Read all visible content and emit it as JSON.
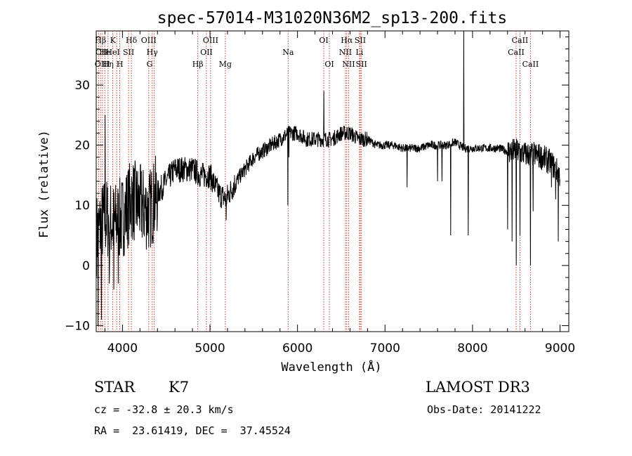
{
  "chart_data": {
    "type": "line",
    "title": "spec-57014-M31020N36M2_sp13-200.fits",
    "xlabel": "Wavelength (Å)",
    "ylabel": "Flux (relative)",
    "xlim": [
      3700,
      9100
    ],
    "ylim": [
      -11,
      39
    ],
    "xticks": [
      4000,
      5000,
      6000,
      7000,
      8000,
      9000
    ],
    "yticks": [
      -10,
      0,
      10,
      20,
      30
    ],
    "grid": false,
    "spectrum_anchors": {
      "x": [
        3700,
        3800,
        3900,
        4000,
        4100,
        4200,
        4300,
        4400,
        4500,
        4600,
        4700,
        4800,
        4900,
        5000,
        5100,
        5180,
        5300,
        5400,
        5500,
        5600,
        5700,
        5800,
        5900,
        6000,
        6100,
        6200,
        6300,
        6400,
        6500,
        6600,
        6700,
        6800,
        6900,
        7000,
        7100,
        7200,
        7300,
        7400,
        7500,
        7600,
        7700,
        7800,
        7900,
        8000,
        8100,
        8200,
        8300,
        8400,
        8500,
        8600,
        8700,
        8800,
        8900,
        9000
      ],
      "y": [
        5,
        8,
        7,
        8,
        11,
        10,
        9,
        12,
        14,
        16,
        16,
        16,
        15,
        15,
        12,
        11,
        14,
        16,
        18,
        19,
        20,
        21,
        22,
        22,
        21,
        21,
        21,
        21,
        22,
        22,
        21,
        21,
        20,
        20,
        20,
        19.5,
        19.5,
        19.5,
        20,
        20,
        20,
        20.5,
        19.5,
        19.5,
        19.5,
        19.5,
        19.5,
        19,
        19,
        18.5,
        18.5,
        18,
        17,
        15
      ]
    },
    "spikes": [
      {
        "x": 5185,
        "y": 7.5
      },
      {
        "x": 5890,
        "y": 10
      },
      {
        "x": 5900,
        "y": 18
      },
      {
        "x": 6300,
        "y": 29
      },
      {
        "x": 6563,
        "y": 23
      },
      {
        "x": 7250,
        "y": 13
      },
      {
        "x": 7600,
        "y": 14
      },
      {
        "x": 7650,
        "y": 14
      },
      {
        "x": 7750,
        "y": 5
      },
      {
        "x": 7900,
        "y": 39
      },
      {
        "x": 7950,
        "y": 5
      },
      {
        "x": 8400,
        "y": 6
      },
      {
        "x": 8450,
        "y": 4
      },
      {
        "x": 8500,
        "y": 0
      },
      {
        "x": 8540,
        "y": 5
      },
      {
        "x": 8660,
        "y": 0
      },
      {
        "x": 8690,
        "y": 9
      },
      {
        "x": 8900,
        "y": 13
      },
      {
        "x": 8950,
        "y": 11
      },
      {
        "x": 8980,
        "y": 4
      },
      {
        "x": 9000,
        "y": 0
      },
      {
        "x": 3720,
        "y": -10
      },
      {
        "x": 3760,
        "y": -9
      },
      {
        "x": 3800,
        "y": 25
      },
      {
        "x": 3850,
        "y": -3
      },
      {
        "x": 3900,
        "y": -4
      },
      {
        "x": 3950,
        "y": -3
      }
    ],
    "lines": [
      {
        "label": "Hβ",
        "x": 3750,
        "row": 0
      },
      {
        "label": "CII",
        "x": 3760,
        "row": 1
      },
      {
        "label": "OIII",
        "x": 3770,
        "row": 2
      },
      {
        "label": "He",
        "x": 3800,
        "row": 1
      },
      {
        "label": "Hη",
        "x": 3835,
        "row": 2
      },
      {
        "label": "K",
        "x": 3890,
        "row": 0
      },
      {
        "label": "HeI",
        "x": 3890,
        "row": 1
      },
      {
        "label": "H",
        "x": 3970,
        "row": 2
      },
      {
        "label": "SII",
        "x": 4070,
        "row": 1
      },
      {
        "label": "Hδ",
        "x": 4102,
        "row": 0
      },
      {
        "label": "OIII",
        "x": 4300,
        "row": 0
      },
      {
        "label": "Hγ",
        "x": 4340,
        "row": 1
      },
      {
        "label": "G",
        "x": 4310,
        "row": 2
      },
      {
        "label": "Hβ",
        "x": 4861,
        "row": 2
      },
      {
        "label": "OIII",
        "x": 5007,
        "row": 0
      },
      {
        "label": "OII",
        "x": 4960,
        "row": 1
      },
      {
        "label": "Mg",
        "x": 5175,
        "row": 2
      },
      {
        "label": "Na",
        "x": 5893,
        "row": 1
      },
      {
        "label": "OI",
        "x": 6300,
        "row": 0
      },
      {
        "label": "OI",
        "x": 6364,
        "row": 2
      },
      {
        "label": "Hα",
        "x": 6563,
        "row": 0
      },
      {
        "label": "NII",
        "x": 6548,
        "row": 1
      },
      {
        "label": "NII",
        "x": 6584,
        "row": 2
      },
      {
        "label": "SII",
        "x": 6717,
        "row": 0
      },
      {
        "label": "Li",
        "x": 6708,
        "row": 1
      },
      {
        "label": "SII",
        "x": 6731,
        "row": 2
      },
      {
        "label": "CaII",
        "x": 8498,
        "row": 1
      },
      {
        "label": "CaII",
        "x": 8542,
        "row": 0
      },
      {
        "label": "CaII",
        "x": 8662,
        "row": 2
      }
    ],
    "line_markers": [
      3727,
      3750,
      3771,
      3798,
      3835,
      3889,
      3934,
      3969,
      4070,
      4102,
      4300,
      4340,
      4363,
      4861,
      4959,
      5007,
      5175,
      5893,
      6300,
      6364,
      6548,
      6563,
      6584,
      6708,
      6717,
      6731,
      8498,
      8542,
      8662
    ]
  },
  "info": {
    "class": "STAR",
    "subclass": "K7",
    "survey": "LAMOST DR3",
    "cz": "cz = -32.8 ± 20.3 km/s",
    "obs_date": "Obs-Date: 20141222",
    "radec": "RA =  23.61419, DEC =  37.45524"
  }
}
